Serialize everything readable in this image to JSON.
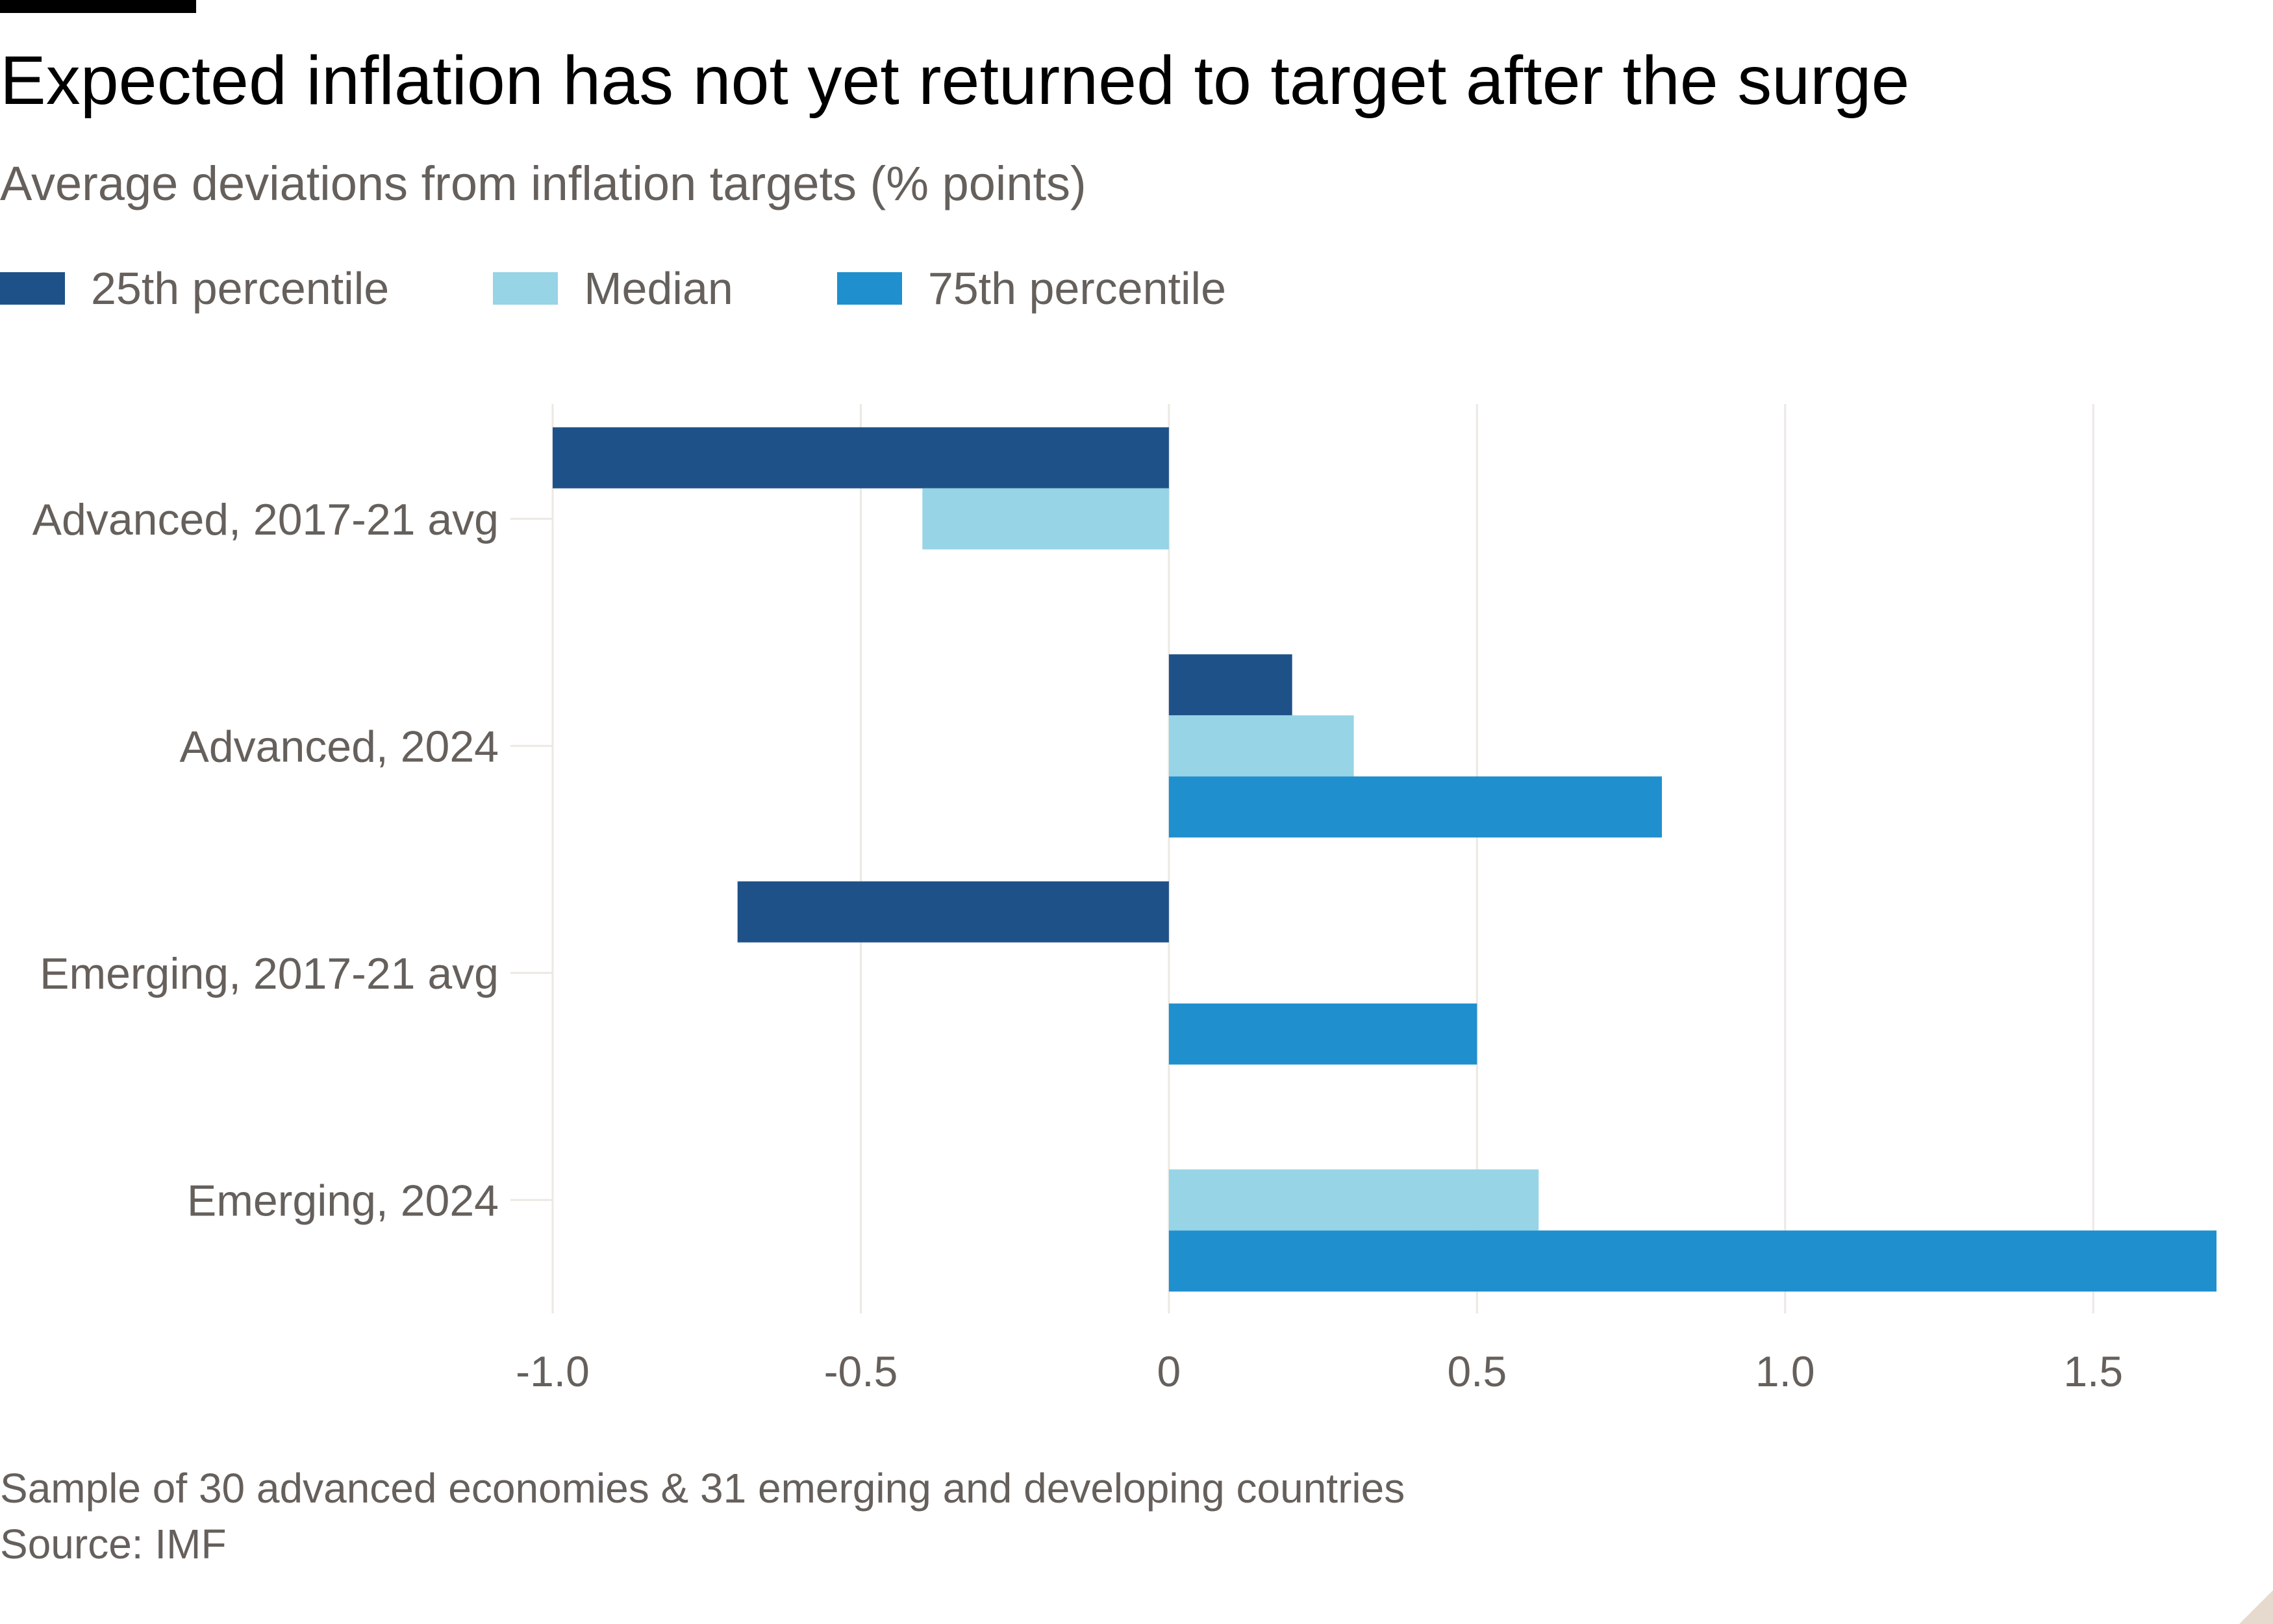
{
  "title": "Expected inflation has not yet returned to target after the surge",
  "subtitle": "Average deviations from inflation targets (% points)",
  "footnote": {
    "note": "Sample of 30 advanced economies & 31 emerging and developing countries",
    "source": "Source: IMF"
  },
  "colors": {
    "p25": "#1f5189",
    "median": "#96d4e6",
    "p75": "#1f8fce",
    "grid": "#ece8e4",
    "text": "#66605c"
  },
  "chart_data": {
    "type": "bar",
    "orientation": "horizontal",
    "categories": [
      "Advanced, 2017-21 avg",
      "Advanced, 2024",
      "Emerging, 2017-21 avg",
      "Emerging, 2024"
    ],
    "series": [
      {
        "name": "25th percentile",
        "color": "#1f5189",
        "values": [
          -1.0,
          0.2,
          -0.7,
          0.0
        ]
      },
      {
        "name": "Median",
        "color": "#96d4e6",
        "values": [
          -0.4,
          0.3,
          0.0,
          0.6
        ]
      },
      {
        "name": "75th percentile",
        "color": "#1f8fce",
        "values": [
          0.0,
          0.8,
          0.5,
          1.7
        ]
      }
    ],
    "xlim": [
      -1.0,
      1.7
    ],
    "xticks": [
      -1.0,
      -0.5,
      0,
      0.5,
      1.0,
      1.5
    ],
    "xtick_labels": [
      "-1.0",
      "-0.5",
      "0",
      "0.5",
      "1.0",
      "1.5"
    ],
    "grid": "vertical",
    "legend_position": "top-left"
  }
}
